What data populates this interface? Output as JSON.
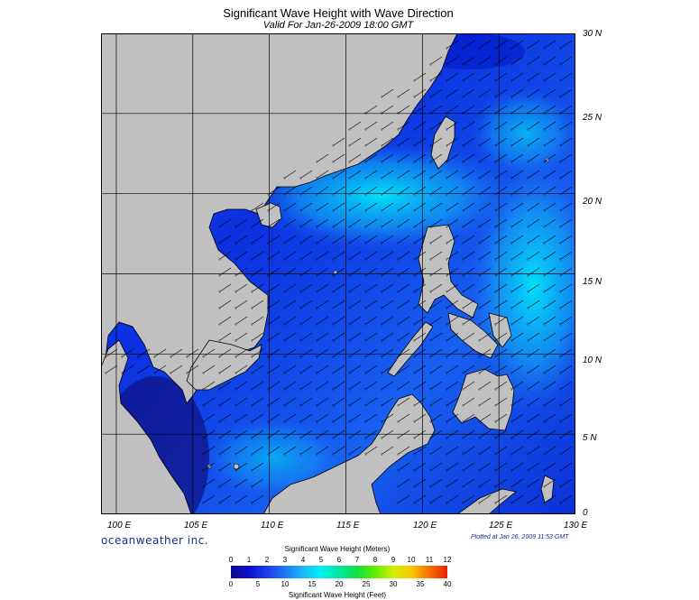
{
  "title": "Significant Wave Height with Wave Direction",
  "subtitle": "Valid For Jan-26-2009 18:00 GMT",
  "lat_labels": [
    "30 N",
    "25 N",
    "20 N",
    "15 N",
    "10 N",
    "5 N",
    "0"
  ],
  "lon_labels": [
    "100 E",
    "105 E",
    "110 E",
    "115 E",
    "120 E",
    "125 E",
    "130 E"
  ],
  "brand": "oceanweather inc.",
  "plotted": "Plotted at Jan 26, 2009 11:53 GMT",
  "colorbar": {
    "meters_title": "Significant Wave Height (Meters)",
    "feet_title": "Significant Wave Height (Feet)",
    "meters_ticks": [
      "0",
      "1",
      "2",
      "3",
      "4",
      "5",
      "6",
      "7",
      "8",
      "9",
      "10",
      "11",
      "12"
    ],
    "feet_ticks": [
      "0",
      "5",
      "10",
      "15",
      "20",
      "25",
      "30",
      "35",
      "40"
    ],
    "colors": [
      "#0a0a8c",
      "#1010d0",
      "#1c3cf0",
      "#1e78f5",
      "#18b8f8",
      "#00f0f0",
      "#00e8a0",
      "#10e040",
      "#60f000",
      "#d0f000",
      "#f8c800",
      "#f87000",
      "#e82000"
    ]
  },
  "map": {
    "extent": {
      "lon_min": 99,
      "lon_max": 130,
      "lat_min": 0,
      "lat_max": 30
    },
    "land_color": "#c0c0c0",
    "coast_color": "#000000",
    "grid_color": "#000000",
    "wave_direction": "northeast-to-southwest arrows"
  }
}
